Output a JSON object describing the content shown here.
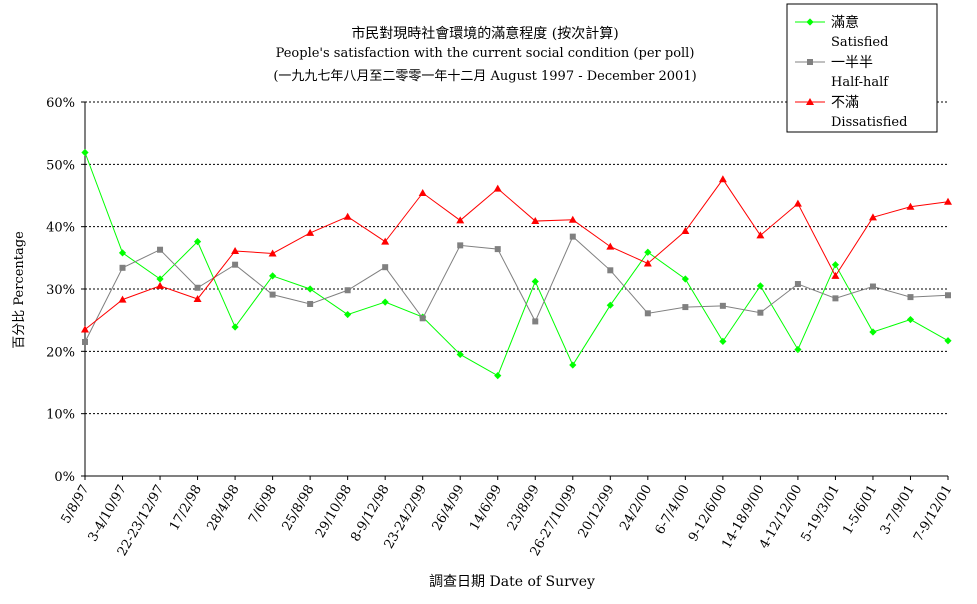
{
  "chart_data": {
    "type": "line",
    "title": "市民對現時社會環境的滿意程度 (按次計算)",
    "subtitle": "People's satisfaction with the current social condition (per poll)",
    "period": "(一九九七年八月至二零零一年十二月 August 1997 -  December 2001)",
    "ylabel": "百分比 Percentage",
    "xlabel": "調查日期 Date of Survey",
    "ylim": [
      0,
      60
    ],
    "yticks": [
      "0%",
      "10%",
      "20%",
      "30%",
      "40%",
      "50%",
      "60%"
    ],
    "grid": true,
    "legend_position": "top-right",
    "categories": [
      "5/8/97",
      "3-4/10/97",
      "22-23/12/97",
      "17/2/98",
      "28/4/98",
      "7/6/98",
      "25/8/98",
      "29/10/98",
      "8-9/12/98",
      "23-24/2/99",
      "26/4/99",
      "14/6/99",
      "23/8/99",
      "26-27/10/99",
      "20/12/99",
      "24/2/00",
      "6-7/4/00",
      "9-12/6/00",
      "14-18/9/00",
      "4-12/12/00",
      "5-19/3/01",
      "1-5/6/01",
      "3-7/9/01",
      "7-9/12/01"
    ],
    "series": [
      {
        "name": "滿意",
        "name_en": "Satisfied",
        "color": "#00ff00",
        "marker": "diamond",
        "values": [
          51.9,
          35.8,
          31.6,
          37.6,
          23.9,
          32.1,
          30.0,
          25.9,
          27.9,
          25.5,
          19.5,
          16.1,
          31.2,
          17.8,
          27.4,
          35.9,
          31.6,
          21.6,
          30.5,
          20.3,
          33.9,
          23.1,
          25.1,
          21.7
        ]
      },
      {
        "name": "一半半",
        "name_en": "Half-half",
        "color": "#808080",
        "marker": "square",
        "values": [
          21.5,
          33.4,
          36.3,
          30.2,
          33.9,
          29.1,
          27.6,
          29.8,
          33.5,
          25.3,
          37.0,
          36.4,
          24.8,
          38.4,
          33.0,
          26.1,
          27.1,
          27.3,
          26.2,
          30.8,
          28.5,
          30.4,
          28.7,
          29.0
        ]
      },
      {
        "name": "不滿",
        "name_en": "Dissatisfied",
        "color": "#ff0000",
        "marker": "triangle",
        "values": [
          23.5,
          28.3,
          30.5,
          28.4,
          36.1,
          35.7,
          39.0,
          41.6,
          37.6,
          45.4,
          41.0,
          46.1,
          40.9,
          41.1,
          36.8,
          34.1,
          39.3,
          47.6,
          38.6,
          43.7,
          32.1,
          41.5,
          43.2,
          44.0
        ]
      }
    ]
  }
}
